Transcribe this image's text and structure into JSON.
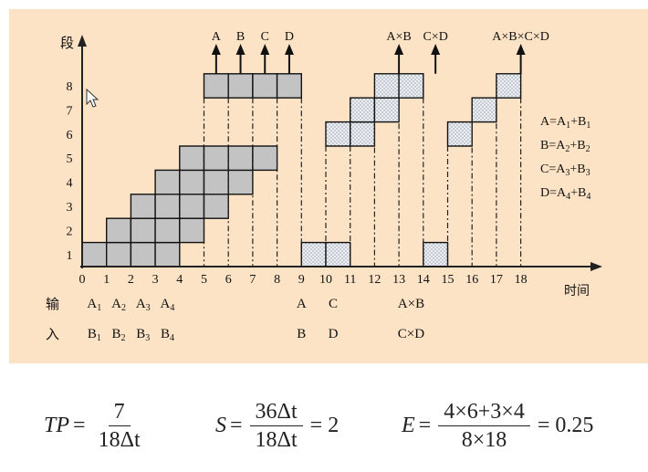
{
  "diagram": {
    "background": "#fde3c5",
    "cell_fill": "#c3c3c3",
    "dotted_fill": "#ecf0f4",
    "y_axis_label": "段",
    "x_axis_label": "时间",
    "x_ticks": [
      "0",
      "1",
      "2",
      "3",
      "4",
      "5",
      "6",
      "7",
      "8",
      "9",
      "10",
      "11",
      "12",
      "13",
      "14",
      "15",
      "16",
      "17",
      "18"
    ],
    "y_ticks": [
      "1",
      "2",
      "3",
      "4",
      "5",
      "6",
      "7",
      "8"
    ],
    "output_labels": [
      {
        "text": "A",
        "t": 5.5
      },
      {
        "text": "B",
        "t": 6.5
      },
      {
        "text": "C",
        "t": 7.5
      },
      {
        "text": "D",
        "t": 8.5
      },
      {
        "text": "A×B",
        "t": 13
      },
      {
        "text": "C×D",
        "t": 14.5
      },
      {
        "text": "A×B×C×D",
        "t": 18
      }
    ],
    "definitions": [
      "A=A1+B1",
      "B=A2+B2",
      "C=A3+B3",
      "D=A4+B4"
    ],
    "input_row_label": "输",
    "input_row2_label": "入",
    "input_row1": [
      {
        "text": "A1",
        "t": 0.5
      },
      {
        "text": "A2",
        "t": 1.5
      },
      {
        "text": "A3",
        "t": 2.5
      },
      {
        "text": "A4",
        "t": 3.5
      },
      {
        "text": "A",
        "t": 9
      },
      {
        "text": "C",
        "t": 10.3
      },
      {
        "text": "A×B",
        "t": 13.5
      }
    ],
    "input_row2": [
      {
        "text": "B1",
        "t": 0.5
      },
      {
        "text": "B2",
        "t": 1.5
      },
      {
        "text": "B3",
        "t": 2.5
      },
      {
        "text": "B4",
        "t": 3.5
      },
      {
        "text": "B",
        "t": 9
      },
      {
        "text": "D",
        "t": 10.3
      },
      {
        "text": "C×D",
        "t": 13.5
      }
    ],
    "gray_bars": [
      {
        "stage": 1,
        "start": 0,
        "end": 4
      },
      {
        "stage": 2,
        "start": 1,
        "end": 5
      },
      {
        "stage": 3,
        "start": 2,
        "end": 6
      },
      {
        "stage": 4,
        "start": 3,
        "end": 7
      },
      {
        "stage": 5,
        "start": 4,
        "end": 8
      },
      {
        "stage": 8,
        "start": 5,
        "end": 9
      }
    ],
    "dotted_cells": [
      {
        "stage": 1,
        "start": 9,
        "end": 10
      },
      {
        "stage": 1,
        "start": 10,
        "end": 11
      },
      {
        "stage": 1,
        "start": 14,
        "end": 15
      },
      {
        "stage": 6,
        "start": 10,
        "end": 11
      },
      {
        "stage": 6,
        "start": 11,
        "end": 12
      },
      {
        "stage": 6,
        "start": 15,
        "end": 16
      },
      {
        "stage": 7,
        "start": 11,
        "end": 12
      },
      {
        "stage": 7,
        "start": 12,
        "end": 13
      },
      {
        "stage": 7,
        "start": 16,
        "end": 17
      },
      {
        "stage": 8,
        "start": 12,
        "end": 13
      },
      {
        "stage": 8,
        "start": 13,
        "end": 14
      },
      {
        "stage": 8,
        "start": 17,
        "end": 18
      }
    ],
    "dash_lines": [
      {
        "t": 5,
        "from": 5,
        "to": 8
      },
      {
        "t": 6,
        "from": 5,
        "to": 8
      },
      {
        "t": 7,
        "from": 5,
        "to": 8
      },
      {
        "t": 8,
        "from": 5,
        "to": 8
      },
      {
        "t": 9,
        "from": 1,
        "to": 8
      },
      {
        "t": 10,
        "from": 1,
        "to": 6
      },
      {
        "t": 11,
        "from": 1,
        "to": 6
      },
      {
        "t": 12,
        "from": 1,
        "to": 7
      },
      {
        "t": 13,
        "from": 1,
        "to": 8
      },
      {
        "t": 14,
        "from": 1,
        "to": 8
      },
      {
        "t": 15,
        "from": 1,
        "to": 6
      },
      {
        "t": 16,
        "from": 1,
        "to": 7
      },
      {
        "t": 17,
        "from": 1,
        "to": 8
      },
      {
        "t": 18,
        "from": 1,
        "to": 8
      }
    ],
    "arrows": [
      5.5,
      6.5,
      7.5,
      8.5,
      13,
      14.5,
      18
    ]
  },
  "formulas": {
    "tp": {
      "lhs": "TP",
      "num": "7",
      "den": "18Δt"
    },
    "s": {
      "lhs": "S",
      "num": "36Δt",
      "den": "18Δt",
      "rhs": "= 2"
    },
    "e": {
      "lhs": "E",
      "num": "4×6+3×4",
      "den": "8×18",
      "rhs": "= 0.25"
    }
  }
}
